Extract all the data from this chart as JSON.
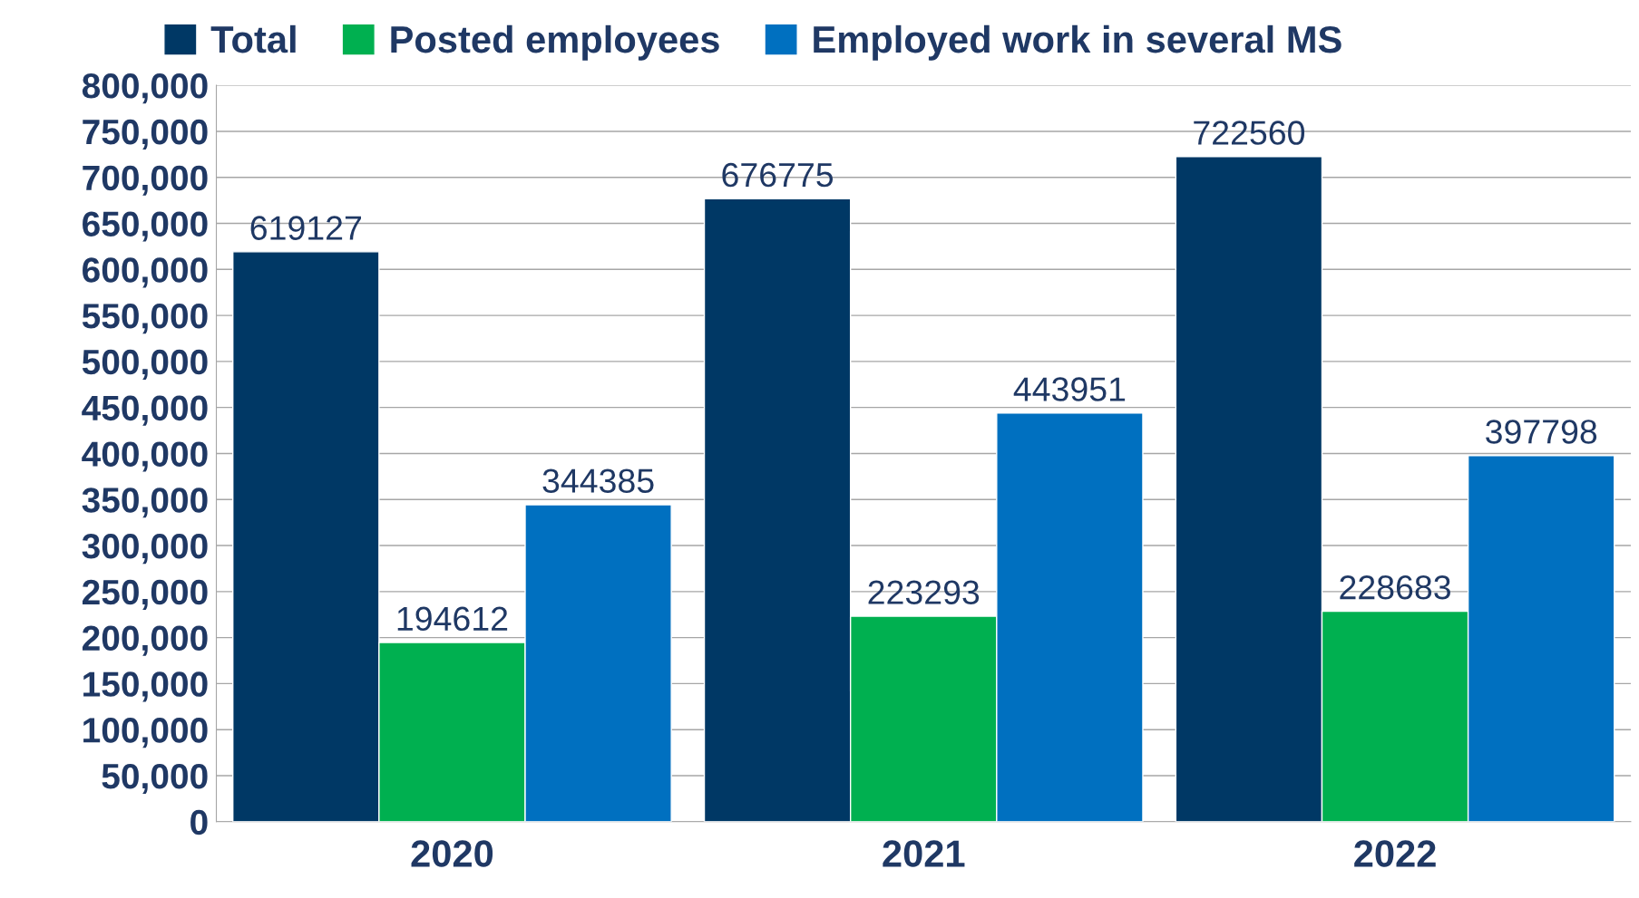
{
  "chart_data": {
    "type": "bar",
    "categories": [
      "2020",
      "2021",
      "2022"
    ],
    "series": [
      {
        "name": "Total",
        "color": "#003865",
        "values": [
          619127,
          676775,
          722560
        ]
      },
      {
        "name": "Posted employees",
        "color": "#00b050",
        "values": [
          194612,
          223293,
          228683
        ]
      },
      {
        "name": "Employed work in several MS",
        "color": "#0070c0",
        "values": [
          344385,
          443951,
          397798
        ]
      }
    ],
    "ylim": [
      0,
      800000
    ],
    "yticks": [
      {
        "value": 0,
        "label": "0"
      },
      {
        "value": 50000,
        "label": "50,000"
      },
      {
        "value": 100000,
        "label": "100,000"
      },
      {
        "value": 150000,
        "label": "150,000"
      },
      {
        "value": 200000,
        "label": "200,000"
      },
      {
        "value": 250000,
        "label": "250,000"
      },
      {
        "value": 300000,
        "label": "300,000"
      },
      {
        "value": 350000,
        "label": "350,000"
      },
      {
        "value": 400000,
        "label": "400,000"
      },
      {
        "value": 450000,
        "label": "450,000"
      },
      {
        "value": 500000,
        "label": "500,000"
      },
      {
        "value": 550000,
        "label": "550,000"
      },
      {
        "value": 600000,
        "label": "600,000"
      },
      {
        "value": 650000,
        "label": "650,000"
      },
      {
        "value": 700000,
        "label": "700,000"
      },
      {
        "value": 750000,
        "label": "750,000"
      },
      {
        "value": 800000,
        "label": "800,000"
      }
    ],
    "grid": "y",
    "legend": "top",
    "data_labels": true
  }
}
